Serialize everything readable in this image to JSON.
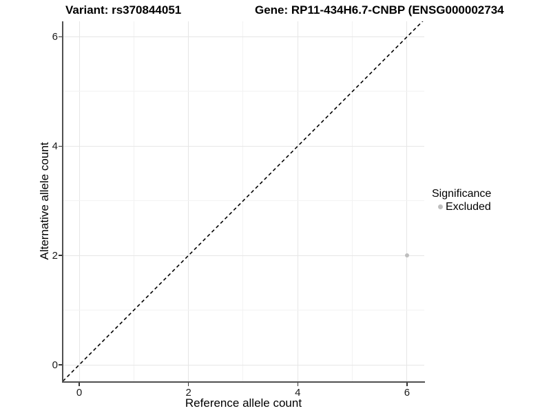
{
  "titles": {
    "variant": "Variant: rs370844051",
    "gene": "Gene: RP11-434H6.7-CNBP (ENSG000002734"
  },
  "chart_data": {
    "type": "scatter",
    "title": "Variant: rs370844051   Gene: RP11-434H6.7-CNBP (ENSG000002734",
    "xlabel": "Reference allele count",
    "ylabel": "Alternative allele count",
    "x_ticks": [
      0,
      2,
      4,
      6
    ],
    "y_ticks": [
      0,
      2,
      4,
      6
    ],
    "xlim": [
      -0.3,
      6.33
    ],
    "ylim": [
      -0.3,
      6.28
    ],
    "grid": true,
    "reference_line": {
      "kind": "identity y=x",
      "style": "dashed",
      "color": "#000000"
    },
    "series": [
      {
        "name": "Excluded",
        "points": [
          {
            "x": 6,
            "y": 2
          }
        ],
        "color": "#bebebe",
        "point_radius_px": 3
      }
    ],
    "legend": {
      "position": "right",
      "title": "Significance",
      "items": [
        {
          "label": "Excluded",
          "color": "#bebebe"
        }
      ]
    },
    "colors": {
      "grid_major": "#e6e6e6",
      "grid_minor": "#f2f2f2",
      "axis_line": "#4f4f4f",
      "text": "#000000"
    }
  }
}
